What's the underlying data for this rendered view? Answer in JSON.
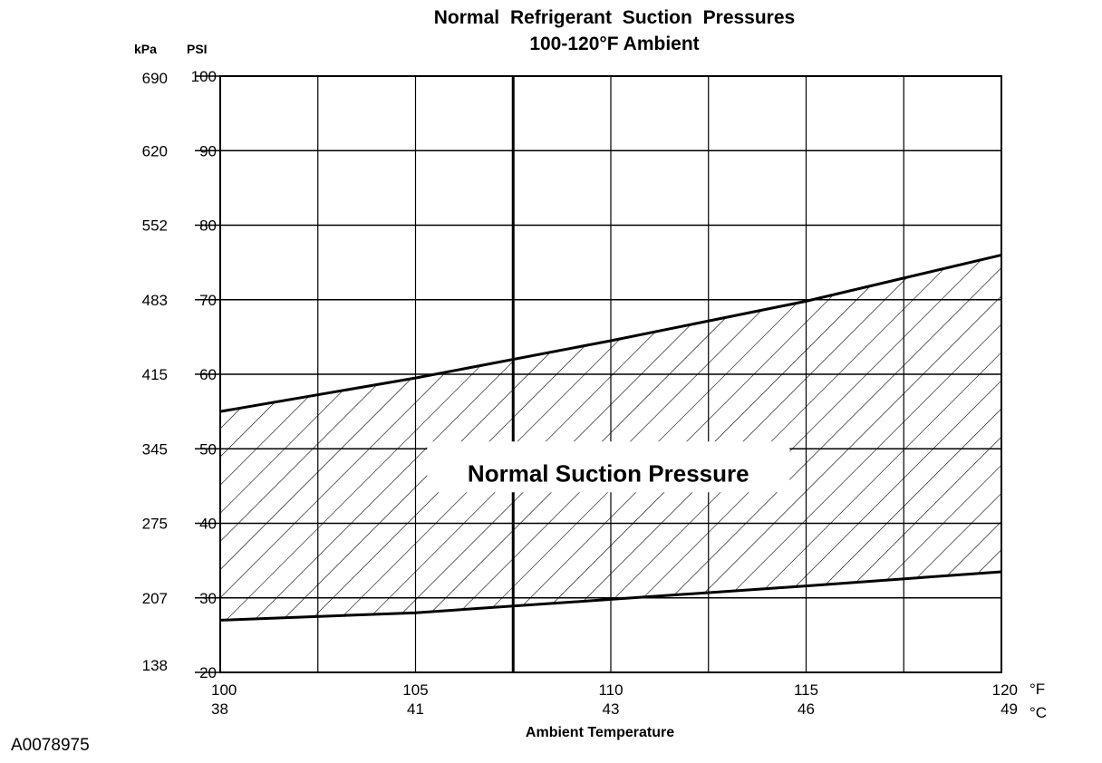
{
  "chart_data": {
    "type": "area",
    "title": "Normal Refrigerant Suction Pressures",
    "subtitle": "100-120°F Ambient",
    "xlabel": "Ambient Temperature",
    "y_unit_left": "kPa",
    "y_unit_right": "PSI",
    "x_unit_f": "°F",
    "x_unit_c": "°C",
    "ylim": [
      20,
      100
    ],
    "xlim": [
      100,
      120
    ],
    "grid": true,
    "y_ticks_psi": [
      100,
      90,
      80,
      70,
      60,
      50,
      40,
      30,
      20
    ],
    "y_ticks_kpa": [
      "690",
      "620",
      "552",
      "483",
      "415",
      "345",
      "275",
      "207",
      "138"
    ],
    "x_ticks_f": [
      "100",
      "105",
      "110",
      "115",
      "120"
    ],
    "x_ticks_c": [
      "38",
      "41",
      "43",
      "46",
      "49"
    ],
    "band_label": "Normal Suction Pressure",
    "upper_boundary": {
      "x": [
        100,
        105,
        110,
        115,
        120
      ],
      "y": [
        55,
        59.5,
        64.5,
        69.8,
        76
      ]
    },
    "lower_boundary": {
      "x": [
        100,
        105,
        110,
        115,
        120
      ],
      "y": [
        27,
        28,
        29.8,
        31.6,
        33.5
      ]
    }
  },
  "figure_id": "A0078975"
}
